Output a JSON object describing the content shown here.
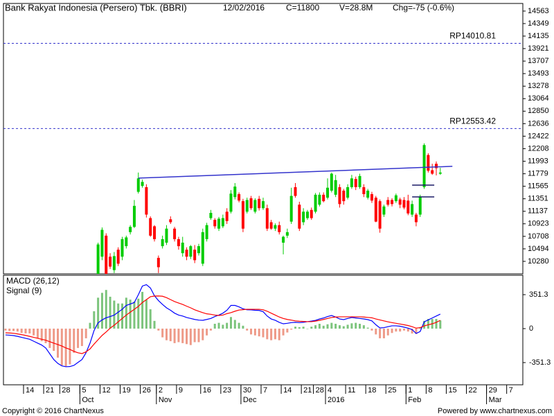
{
  "chart_data": [
    {
      "type": "candlestick",
      "title": "Bank Rakyat Indonesia (Persero) Tbk. (BBRI)",
      "date": "12/02/2016",
      "close_text": "C=11800",
      "volume_text": "V=28.8M",
      "change_text": "Chg=-75 (-0.6%)",
      "up_color": "#00cc00",
      "down_color": "#ff0000",
      "ylim": [
        10066,
        14693
      ],
      "yticks": [
        14563,
        14349,
        14135,
        13921,
        13707,
        13493,
        13278,
        13064,
        12850,
        12636,
        12422,
        12208,
        11993,
        11779,
        11565,
        11351,
        11137,
        10923,
        10708,
        10494,
        10280
      ],
      "categories": [
        null,
        null,
        null,
        null,
        null,
        "14",
        null,
        null,
        null,
        null,
        "21",
        null,
        null,
        null,
        "28",
        null,
        null,
        null,
        null,
        "5",
        null,
        null,
        null,
        null,
        "12",
        null,
        null,
        null,
        null,
        "19",
        null,
        null,
        null,
        null,
        "26",
        null,
        null,
        null,
        "2",
        null,
        null,
        null,
        null,
        "9",
        null,
        null,
        null,
        null,
        null,
        "16",
        null,
        null,
        null,
        null,
        "23",
        null,
        null,
        null,
        null,
        "30",
        null,
        null,
        null,
        null,
        "7",
        null,
        null,
        null,
        null,
        "14",
        null,
        null,
        null,
        null,
        "21",
        null,
        null,
        "28",
        null,
        null,
        "4",
        null,
        null,
        null,
        null,
        "11",
        null,
        null,
        null,
        null,
        "18",
        null,
        null,
        null,
        null,
        "25",
        null,
        null,
        null,
        null,
        "1",
        null,
        null,
        null,
        null,
        "8",
        null,
        null,
        null,
        null,
        "15",
        null,
        null,
        null,
        null,
        "22",
        null,
        null,
        null,
        null,
        "29",
        null,
        null,
        null,
        null,
        "7",
        null,
        null,
        null
      ],
      "months": [
        null,
        null,
        null,
        null,
        null,
        null,
        null,
        null,
        null,
        null,
        null,
        null,
        null,
        null,
        null,
        null,
        null,
        null,
        null,
        "Oct",
        null,
        null,
        null,
        null,
        null,
        null,
        null,
        null,
        null,
        null,
        null,
        null,
        null,
        null,
        null,
        null,
        null,
        null,
        "Nov",
        null,
        null,
        null,
        null,
        null,
        null,
        null,
        null,
        null,
        null,
        null,
        null,
        null,
        null,
        null,
        null,
        null,
        null,
        null,
        null,
        "Dec",
        null,
        null,
        null,
        null,
        null,
        null,
        null,
        null,
        null,
        null,
        null,
        null,
        null,
        null,
        null,
        null,
        null,
        null,
        null,
        null,
        "2016",
        null,
        null,
        null,
        null,
        null,
        null,
        null,
        null,
        null,
        null,
        null,
        null,
        null,
        null,
        null,
        null,
        null,
        null,
        null,
        "Feb",
        null,
        null,
        null,
        null,
        null,
        null,
        null,
        null,
        null,
        null,
        null,
        null,
        null,
        null,
        null,
        null,
        null,
        null,
        null,
        "Mar",
        null,
        null,
        null,
        null,
        null,
        null,
        null,
        null
      ],
      "open": [
        null,
        null,
        null,
        null,
        null,
        null,
        null,
        null,
        null,
        null,
        null,
        null,
        null,
        null,
        null,
        null,
        null,
        null,
        null,
        null,
        null,
        null,
        null,
        9950,
        10360,
        10720,
        10360,
        10130,
        10480,
        10360,
        10540,
        10780,
        10870,
        11470,
        11570,
        11550,
        11020,
        10880,
        10340,
        10540,
        10600,
        11000,
        10840,
        10660,
        10420,
        10480,
        10360,
        10480,
        10420,
        10240,
        10660,
        11020,
        10990,
        10840,
        10880,
        11130,
        11130,
        11380,
        11430,
        11310,
        11130,
        11360,
        11130,
        11350,
        11190,
        11190,
        10950,
        10840,
        10900,
        10600,
        10720,
        10960,
        11550,
        11250,
        10950,
        11020,
        11160,
        11130,
        11250,
        11420,
        11370,
        11490,
        11420,
        11550,
        11490,
        11370,
        11550,
        11690,
        11550,
        11550,
        11370,
        11430,
        11370,
        11310,
        11080,
        11330,
        11330,
        11310,
        11340,
        11330,
        11320,
        11080,
        11080,
        11080,
        11550,
        12100,
        11840,
        11950,
        11780,
        null,
        null,
        null,
        null,
        null,
        null,
        null,
        null,
        null,
        null,
        null,
        null,
        null,
        null,
        null,
        null,
        null,
        null,
        null,
        null
      ],
      "high": [
        null,
        null,
        null,
        null,
        null,
        null,
        null,
        null,
        null,
        null,
        null,
        null,
        null,
        null,
        null,
        null,
        null,
        null,
        null,
        null,
        null,
        null,
        null,
        10600,
        10860,
        10760,
        10420,
        10440,
        10520,
        10700,
        10720,
        10900,
        11330,
        11800,
        11680,
        11600,
        11050,
        10900,
        10380,
        10720,
        10900,
        11050,
        10870,
        10700,
        10700,
        10520,
        10560,
        10560,
        10580,
        10840,
        10940,
        11160,
        11020,
        11040,
        11080,
        11190,
        11500,
        11620,
        11460,
        11350,
        11370,
        11400,
        11360,
        11400,
        11370,
        11250,
        10990,
        10930,
        10960,
        10720,
        10840,
        11540,
        11620,
        11300,
        11190,
        11160,
        11200,
        11450,
        11460,
        11460,
        11700,
        11800,
        11760,
        11600,
        11520,
        11600,
        11760,
        11730,
        11780,
        11600,
        11520,
        11470,
        11400,
        11340,
        11250,
        11380,
        11360,
        11440,
        11370,
        11380,
        11420,
        11320,
        11110,
        11420,
        12300,
        12130,
        11950,
        11990,
        11880,
        null,
        null,
        null,
        null,
        null,
        null,
        null,
        null,
        null,
        null,
        null,
        null,
        null,
        null,
        null,
        null,
        null,
        null,
        null,
        null
      ],
      "low": [
        null,
        null,
        null,
        null,
        null,
        null,
        null,
        null,
        null,
        null,
        null,
        null,
        null,
        null,
        null,
        null,
        null,
        null,
        null,
        null,
        null,
        null,
        null,
        9900,
        10300,
        9950,
        10150,
        10080,
        10200,
        10300,
        10500,
        10740,
        10850,
        11440,
        11540,
        11030,
        10700,
        10620,
        10080,
        10500,
        10560,
        10920,
        10620,
        10480,
        10360,
        10300,
        10320,
        10250,
        10380,
        10200,
        10620,
        10990,
        10840,
        10800,
        10850,
        10920,
        11100,
        11340,
        11290,
        10780,
        11100,
        11160,
        11100,
        11150,
        11160,
        10800,
        10820,
        10800,
        10740,
        10400,
        10680,
        10920,
        11370,
        10800,
        10900,
        10990,
        10990,
        11100,
        11220,
        11290,
        11340,
        11460,
        11380,
        11200,
        11250,
        11340,
        11520,
        11500,
        11520,
        11380,
        11340,
        11280,
        10950,
        10770,
        11040,
        11220,
        11220,
        11280,
        11190,
        11170,
        11070,
        11040,
        10880,
        11040,
        11520,
        11800,
        11760,
        11750,
        11760,
        null,
        null,
        null,
        null,
        null,
        null,
        null,
        null,
        null,
        null,
        null,
        null,
        null,
        null,
        null,
        null,
        null,
        null,
        null,
        null
      ],
      "close": [
        null,
        null,
        null,
        null,
        null,
        null,
        null,
        null,
        null,
        null,
        null,
        null,
        null,
        null,
        null,
        null,
        null,
        null,
        null,
        null,
        null,
        null,
        null,
        10570,
        10820,
        10000,
        10190,
        10370,
        10240,
        10660,
        10690,
        10870,
        11230,
        11700,
        11640,
        11080,
        10720,
        10660,
        10180,
        10660,
        10840,
        10950,
        10660,
        10540,
        10600,
        10360,
        10540,
        10300,
        10540,
        10780,
        10900,
        11110,
        10880,
        11010,
        11020,
        10970,
        11440,
        11560,
        11320,
        10840,
        11330,
        11190,
        11330,
        11190,
        11310,
        10840,
        10840,
        10900,
        10780,
        10700,
        10780,
        11400,
        11400,
        10840,
        11130,
        11130,
        11020,
        11420,
        11420,
        11310,
        11540,
        11780,
        11670,
        11260,
        11310,
        11550,
        11700,
        11550,
        11740,
        11430,
        11490,
        11320,
        10960,
        10840,
        11220,
        11250,
        11260,
        11410,
        11250,
        11200,
        11100,
        11260,
        10950,
        11390,
        12270,
        11830,
        11780,
        11875,
        11800,
        null,
        null,
        null,
        null,
        null,
        null,
        null,
        null,
        null,
        null,
        null,
        null,
        null,
        null,
        null,
        null,
        null,
        null,
        null,
        null
      ],
      "hlines": [
        {
          "value": 14010.81,
          "label": "RP14010.81"
        },
        {
          "value": 12553.42,
          "label": "RP12553.42"
        }
      ],
      "hline_color": "#3333cc",
      "trendlines": [
        {
          "x": [
            33,
            111
          ],
          "y": [
            11704,
            11906
          ],
          "color": "#3333cc"
        },
        {
          "x": [
            101,
            106.5
          ],
          "y": [
            11585,
            11585
          ],
          "color": "#1a1a66"
        },
        {
          "x": [
            101,
            106.5
          ],
          "y": [
            11383,
            11383
          ],
          "color": "#1a1a66"
        }
      ]
    },
    {
      "type": "macd",
      "ylim": [
        -581,
        552
      ],
      "yticks": [
        351.3,
        0,
        -351.3
      ],
      "series": [
        {
          "name": "MACD (26,12)",
          "color": "#0000ff",
          "values": [
            -65,
            -68,
            -72,
            -80,
            -90,
            -100,
            -110,
            -130,
            -150,
            -170,
            -200,
            -260,
            -320,
            -360,
            -385,
            -394,
            -392,
            -380,
            -350,
            -320,
            -250,
            -150,
            -20,
            60,
            90,
            112,
            125,
            140,
            170,
            200,
            240,
            255,
            270,
            350,
            440,
            455,
            420,
            340,
            290,
            250,
            215,
            190,
            160,
            140,
            130,
            115,
            105,
            95,
            88,
            86,
            95,
            105,
            125,
            140,
            160,
            190,
            240,
            240,
            225,
            205,
            195,
            194,
            190,
            188,
            175,
            130,
            100,
            86,
            65,
            50,
            55,
            62,
            65,
            62,
            65,
            72,
            78,
            85,
            100,
            110,
            125,
            136,
            120,
            100,
            93,
            105,
            115,
            110,
            105,
            100,
            93,
            80,
            40,
            7,
            10,
            20,
            29,
            29,
            25,
            15,
            5,
            -10,
            -50,
            -30,
            70,
            90,
            110,
            130,
            150,
            null,
            null,
            null,
            null,
            null,
            null,
            null,
            null,
            null,
            null,
            null,
            null,
            null,
            null,
            null,
            null,
            null,
            null,
            null,
            null
          ]
        },
        {
          "name": "Signal (9)",
          "color": "#ff0000",
          "values": [
            -43,
            -45,
            -48,
            -55,
            -62,
            -70,
            -80,
            -90,
            -100,
            -110,
            -120,
            -135,
            -150,
            -165,
            -180,
            -200,
            -215,
            -235,
            -250,
            -258,
            -240,
            -210,
            -160,
            -115,
            -70,
            -35,
            5,
            35,
            70,
            105,
            140,
            170,
            200,
            230,
            270,
            300,
            330,
            337,
            338,
            335,
            320,
            300,
            280,
            265,
            250,
            232,
            215,
            195,
            180,
            165,
            153,
            148,
            140,
            136,
            140,
            155,
            165,
            180,
            192,
            196,
            200,
            200,
            200,
            200,
            195,
            180,
            160,
            140,
            120,
            105,
            95,
            88,
            80,
            76,
            74,
            72,
            72,
            78,
            86,
            95,
            105,
            115,
            120,
            122,
            122,
            122,
            122,
            122,
            122,
            120,
            116,
            112,
            100,
            90,
            80,
            70,
            62,
            55,
            48,
            40,
            32,
            20,
            5,
            10,
            28,
            40,
            50,
            65,
            86,
            null,
            null,
            null,
            null,
            null,
            null,
            null,
            null,
            null,
            null,
            null,
            null,
            null,
            null,
            null,
            null,
            null,
            null,
            null,
            null
          ]
        }
      ],
      "histogram": {
        "positive_color": "#7cc47c",
        "negative_color": "#ee9a88",
        "values": [
          -20,
          -25,
          -25,
          -30,
          -45,
          -50,
          -50,
          -70,
          -100,
          -130,
          -150,
          -200,
          -230,
          -300,
          -380,
          -390,
          -370,
          -250,
          -200,
          -180,
          -100,
          60,
          180,
          320,
          370,
          400,
          330,
          290,
          260,
          260,
          320,
          300,
          280,
          310,
          380,
          300,
          200,
          80,
          -20,
          -90,
          -120,
          -130,
          -150,
          -140,
          -150,
          -160,
          -170,
          -140,
          -140,
          -120,
          -70,
          -20,
          50,
          60,
          40,
          60,
          120,
          90,
          60,
          30,
          -20,
          -60,
          -70,
          -80,
          -90,
          -110,
          -120,
          -110,
          -120,
          -70,
          -40,
          -10,
          20,
          15,
          20,
          0,
          20,
          35,
          50,
          30,
          45,
          60,
          50,
          35,
          25,
          40,
          55,
          60,
          50,
          35,
          10,
          -20,
          -60,
          -100,
          -100,
          -70,
          -45,
          -30,
          -30,
          -20,
          -30,
          -50,
          -55,
          15,
          80,
          100,
          100,
          100,
          85,
          null,
          null,
          null,
          null,
          null,
          null,
          null,
          null,
          null,
          null,
          null,
          null,
          null,
          null,
          null,
          null,
          null,
          null,
          null,
          null
        ]
      }
    }
  ],
  "footer": {
    "copyright": "Copyright © 2016 ChartNexus",
    "powered_by": "Powered by www.chartnexus.com"
  }
}
